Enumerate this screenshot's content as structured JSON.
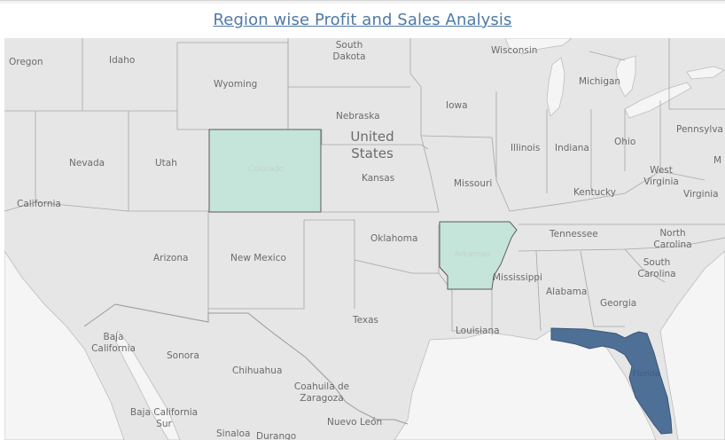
{
  "title": "Region wise Profit and Sales Analysis",
  "colors": {
    "land": "#e6e6e6",
    "water": "#f5f5f5",
    "highlight_light": "#c5e4da",
    "highlight_dark": "#4e6f96"
  },
  "map": {
    "country_label_line1": "United",
    "country_label_line2": "States",
    "highlighted_states": [
      {
        "name": "Colorado",
        "shade": "light"
      },
      {
        "name": "Arkansas",
        "shade": "light"
      },
      {
        "name": "Florida",
        "shade": "dark"
      }
    ],
    "labels": {
      "oregon": "Oregon",
      "idaho": "Idaho",
      "south_dakota_1": "South",
      "south_dakota_2": "Dakota",
      "wisconsin": "Wisconsin",
      "michigan": "Michigan",
      "wyoming": "Wyoming",
      "nebraska": "Nebraska",
      "iowa": "Iowa",
      "pennsylvania": "Pennsylva",
      "illinois": "Illinois",
      "indiana": "Indiana",
      "ohio": "Ohio",
      "nevada": "Nevada",
      "utah": "Utah",
      "colorado": "Colorado",
      "kansas": "Kansas",
      "missouri": "Missouri",
      "west_virginia_1": "West",
      "west_virginia_2": "Virginia",
      "maryland_partial": "M",
      "kentucky": "Kentucky",
      "virginia": "Virginia",
      "california": "California",
      "tennessee": "Tennessee",
      "north_carolina_1": "North",
      "north_carolina_2": "Carolina",
      "oklahoma": "Oklahoma",
      "arizona": "Arizona",
      "new_mexico": "New Mexico",
      "arkansas": "Arkansas",
      "south_carolina_1": "South",
      "south_carolina_2": "Carolina",
      "mississippi": "Mississippi",
      "alabama": "Alabama",
      "georgia": "Georgia",
      "texas": "Texas",
      "louisiana": "Louisiana",
      "baja_california_1": "Baja",
      "baja_california_2": "California",
      "sonora": "Sonora",
      "chihuahua": "Chihuahua",
      "coahuila_1": "Coahuila de",
      "coahuila_2": "Zaragoza",
      "florida": "Florida",
      "baja_california_sur_1": "Baja California",
      "baja_california_sur_2": "Sur",
      "nuevo_leon": "Nuevo León",
      "sinaloa": "Sinaloa",
      "durango": "Durango"
    }
  }
}
